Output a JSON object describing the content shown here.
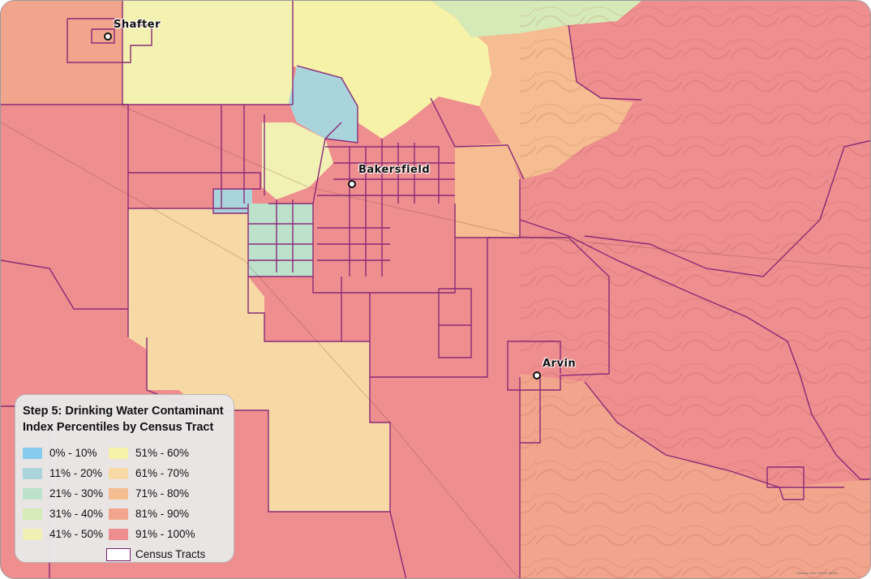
{
  "map": {
    "cities": [
      {
        "name": "Shafter",
        "id": "shafter"
      },
      {
        "name": "Bakersfield",
        "id": "bakersfield"
      },
      {
        "name": "Arvin",
        "id": "arvin"
      }
    ],
    "attribution": "Sources: Esri, USGS, NOAA"
  },
  "legend": {
    "title": "Step 5:  Drinking Water Contaminant\nIndex Percentiles by Census Tract",
    "items": [
      {
        "label": "0% - 10%",
        "color": "#87ccee"
      },
      {
        "label": "51% - 60%",
        "color": "#f6f2a8"
      },
      {
        "label": "11% - 20%",
        "color": "#a9d4dc"
      },
      {
        "label": "61% - 70%",
        "color": "#f7d9a6"
      },
      {
        "label": "21% - 30%",
        "color": "#bde2cc"
      },
      {
        "label": "71% - 80%",
        "color": "#f5bd91"
      },
      {
        "label": "31% - 40%",
        "color": "#d6eab8"
      },
      {
        "label": "81% - 90%",
        "color": "#f2a58d"
      },
      {
        "label": "41% - 50%",
        "color": "#f1f1b4"
      },
      {
        "label": "91% - 100%",
        "color": "#ee8e8e"
      },
      {
        "label": "",
        "color": ""
      },
      {
        "label": "Census Tracts",
        "color": "#7a1f6a"
      }
    ]
  }
}
